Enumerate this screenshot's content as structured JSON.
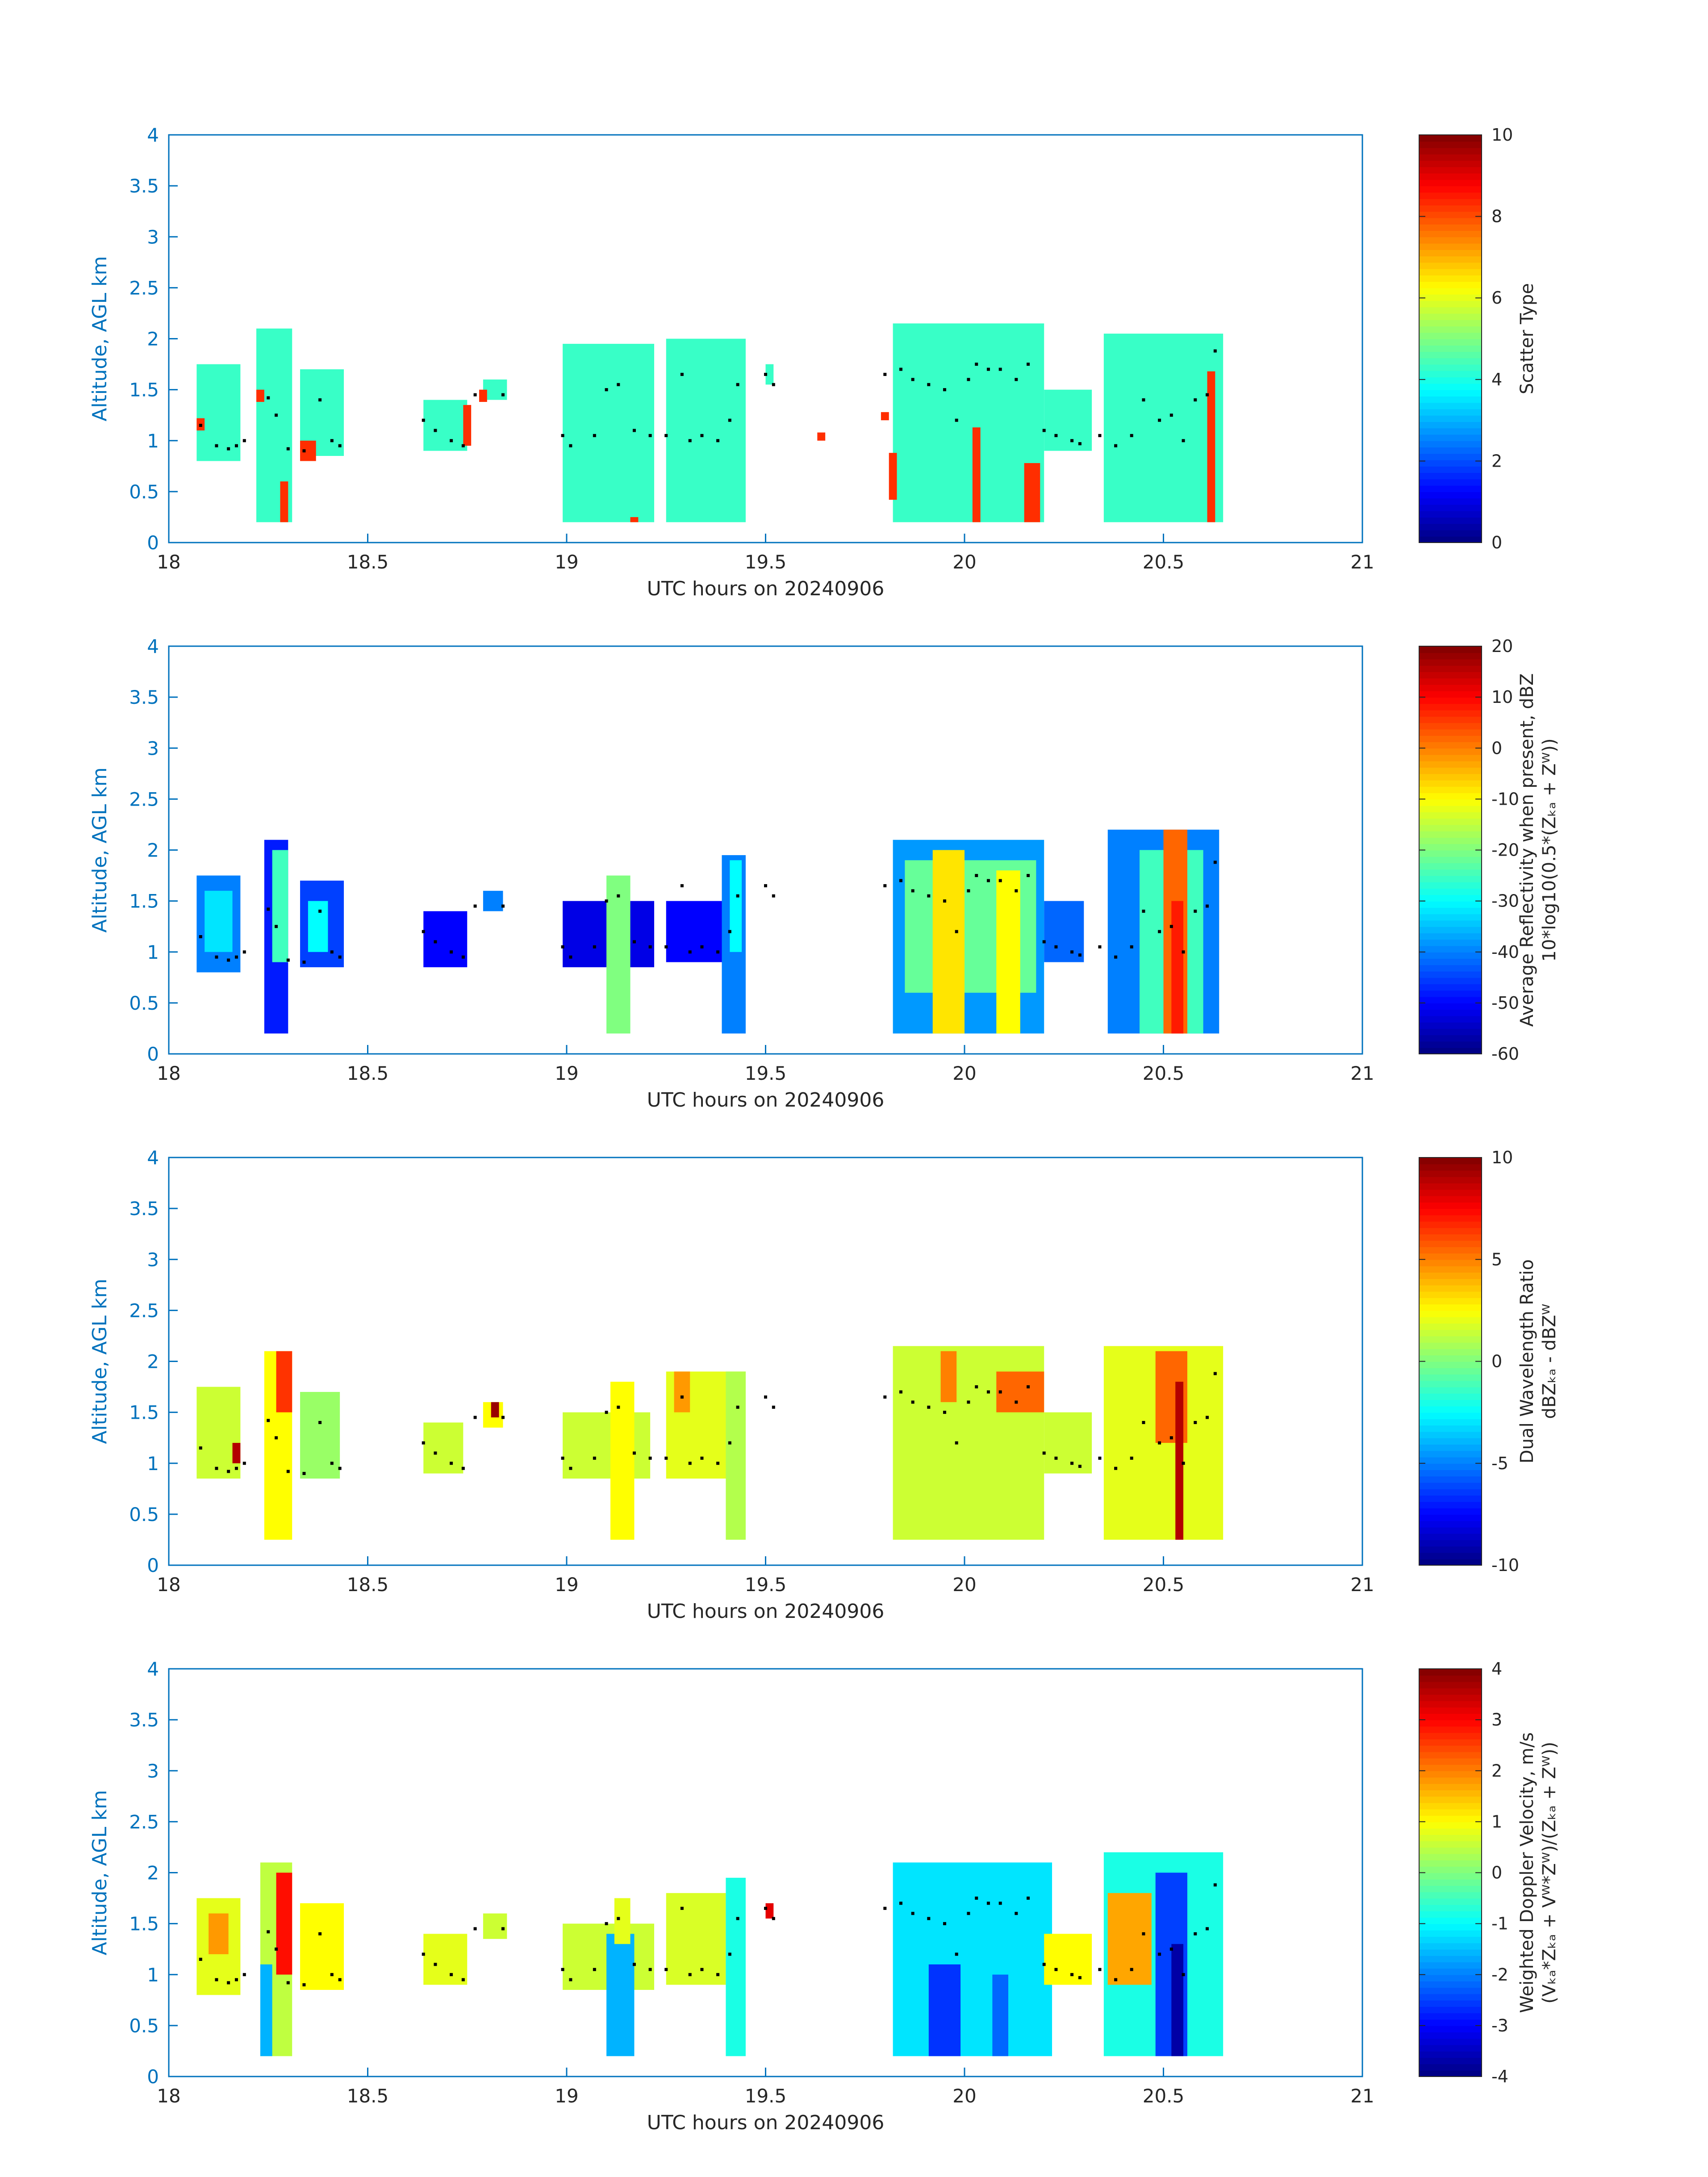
{
  "colors": {
    "axis": "#0072BD",
    "text": "#262626",
    "marker": "#000000",
    "background": "#ffffff"
  },
  "chart_data": [
    {
      "type": "heatmap",
      "xlabel": "UTC hours on 20240906",
      "ylabel": "Altitude, AGL km",
      "xlim": [
        18,
        21
      ],
      "ylim": [
        0,
        4
      ],
      "xticks": [
        "18",
        "18.5",
        "19",
        "19.5",
        "20",
        "20.5",
        "21"
      ],
      "yticks": [
        "0",
        "0.5",
        "1",
        "1.5",
        "2",
        "2.5",
        "3",
        "3.5",
        "4"
      ],
      "colorbar": {
        "label_lines": [
          "Scatter Type"
        ],
        "clim": [
          0,
          10
        ],
        "ticks": [
          "0",
          "2",
          "4",
          "6",
          "8",
          "10"
        ],
        "colormap": "jet"
      },
      "segments": [
        {
          "t0": 18.07,
          "t1": 18.18,
          "bottom": 0.8,
          "top": 1.75,
          "v": 4.3
        },
        {
          "t0": 18.22,
          "t1": 18.31,
          "bottom": 0.2,
          "top": 2.1,
          "v": 4.3
        },
        {
          "t0": 18.33,
          "t1": 18.44,
          "bottom": 0.85,
          "top": 1.7,
          "v": 4.3
        },
        {
          "t0": 18.64,
          "t1": 18.75,
          "bottom": 0.9,
          "top": 1.4,
          "v": 4.3
        },
        {
          "t0": 18.79,
          "t1": 18.85,
          "bottom": 1.4,
          "top": 1.6,
          "v": 4.3
        },
        {
          "t0": 18.99,
          "t1": 19.22,
          "bottom": 0.2,
          "top": 1.95,
          "v": 4.3
        },
        {
          "t0": 19.25,
          "t1": 19.45,
          "bottom": 0.2,
          "top": 2.0,
          "v": 4.3
        },
        {
          "t0": 19.5,
          "t1": 19.52,
          "bottom": 1.55,
          "top": 1.75,
          "v": 4.3
        },
        {
          "t0": 19.82,
          "t1": 20.2,
          "bottom": 0.2,
          "top": 2.15,
          "v": 4.3
        },
        {
          "t0": 20.2,
          "t1": 20.32,
          "bottom": 0.9,
          "top": 1.5,
          "v": 4.3
        },
        {
          "t0": 20.35,
          "t1": 20.65,
          "bottom": 0.2,
          "top": 2.05,
          "v": 4.3
        },
        {
          "t0": 18.07,
          "t1": 18.09,
          "bottom": 1.1,
          "top": 1.22,
          "v": 8.3
        },
        {
          "t0": 18.22,
          "t1": 18.24,
          "bottom": 1.38,
          "top": 1.5,
          "v": 8.3
        },
        {
          "t0": 18.28,
          "t1": 18.3,
          "bottom": 0.2,
          "top": 0.6,
          "v": 8.3
        },
        {
          "t0": 18.33,
          "t1": 18.37,
          "bottom": 0.8,
          "top": 1.0,
          "v": 8.3
        },
        {
          "t0": 18.74,
          "t1": 18.76,
          "bottom": 0.95,
          "top": 1.35,
          "v": 8.3
        },
        {
          "t0": 18.78,
          "t1": 18.8,
          "bottom": 1.38,
          "top": 1.5,
          "v": 8.3
        },
        {
          "t0": 19.16,
          "t1": 19.18,
          "bottom": 0.2,
          "top": 0.25,
          "v": 8.3
        },
        {
          "t0": 19.63,
          "t1": 19.65,
          "bottom": 1.0,
          "top": 1.08,
          "v": 8.3
        },
        {
          "t0": 19.79,
          "t1": 19.81,
          "bottom": 1.2,
          "top": 1.28,
          "v": 8.3
        },
        {
          "t0": 19.81,
          "t1": 19.83,
          "bottom": 0.42,
          "top": 0.88,
          "v": 8.3
        },
        {
          "t0": 20.02,
          "t1": 20.04,
          "bottom": 0.2,
          "top": 1.13,
          "v": 8.3
        },
        {
          "t0": 20.15,
          "t1": 20.19,
          "bottom": 0.2,
          "top": 0.78,
          "v": 8.3
        },
        {
          "t0": 20.61,
          "t1": 20.63,
          "bottom": 0.2,
          "top": 1.68,
          "v": 8.3
        }
      ]
    },
    {
      "type": "heatmap",
      "xlabel": "UTC hours on 20240906",
      "ylabel": "Altitude, AGL km",
      "xlim": [
        18,
        21
      ],
      "ylim": [
        0,
        4
      ],
      "xticks": [
        "18",
        "18.5",
        "19",
        "19.5",
        "20",
        "20.5",
        "21"
      ],
      "yticks": [
        "0",
        "0.5",
        "1",
        "1.5",
        "2",
        "2.5",
        "3",
        "3.5",
        "4"
      ],
      "colorbar": {
        "label_lines": [
          "Average Reflectivity when present, dBZ",
          "10*log10(0.5*(Zₖₐ + Zᵂ))"
        ],
        "clim": [
          -60,
          20
        ],
        "ticks": [
          "-60",
          "-50",
          "-40",
          "-30",
          "-20",
          "-10",
          "0",
          "10",
          "20"
        ],
        "colormap": "jet"
      },
      "segments": [
        {
          "t0": 18.07,
          "t1": 18.18,
          "bottom": 0.8,
          "top": 1.75,
          "v": -40
        },
        {
          "t0": 18.09,
          "t1": 18.16,
          "bottom": 1.0,
          "top": 1.6,
          "v": -32
        },
        {
          "t0": 18.24,
          "t1": 18.3,
          "bottom": 0.2,
          "top": 2.1,
          "v": -48
        },
        {
          "t0": 18.26,
          "t1": 18.3,
          "bottom": 0.9,
          "top": 2.0,
          "v": -25
        },
        {
          "t0": 18.33,
          "t1": 18.44,
          "bottom": 0.85,
          "top": 1.7,
          "v": -45
        },
        {
          "t0": 18.35,
          "t1": 18.4,
          "bottom": 1.0,
          "top": 1.5,
          "v": -30
        },
        {
          "t0": 18.64,
          "t1": 18.75,
          "bottom": 0.85,
          "top": 1.4,
          "v": -50
        },
        {
          "t0": 18.79,
          "t1": 18.84,
          "bottom": 1.4,
          "top": 1.6,
          "v": -40
        },
        {
          "t0": 18.99,
          "t1": 19.22,
          "bottom": 0.85,
          "top": 1.5,
          "v": -52
        },
        {
          "t0": 19.1,
          "t1": 19.16,
          "bottom": 0.2,
          "top": 1.75,
          "v": -20
        },
        {
          "t0": 19.25,
          "t1": 19.4,
          "bottom": 0.9,
          "top": 1.5,
          "v": -50
        },
        {
          "t0": 19.39,
          "t1": 19.45,
          "bottom": 0.2,
          "top": 1.95,
          "v": -40
        },
        {
          "t0": 19.41,
          "t1": 19.44,
          "bottom": 1.0,
          "top": 1.9,
          "v": -30
        },
        {
          "t0": 19.82,
          "t1": 20.2,
          "bottom": 0.2,
          "top": 2.1,
          "v": -38
        },
        {
          "t0": 19.85,
          "t1": 20.18,
          "bottom": 0.6,
          "top": 1.9,
          "v": -22
        },
        {
          "t0": 19.92,
          "t1": 20.0,
          "bottom": 0.2,
          "top": 2.0,
          "v": -8
        },
        {
          "t0": 20.08,
          "t1": 20.14,
          "bottom": 0.2,
          "top": 1.8,
          "v": -10
        },
        {
          "t0": 20.2,
          "t1": 20.3,
          "bottom": 0.9,
          "top": 1.5,
          "v": -42
        },
        {
          "t0": 20.36,
          "t1": 20.64,
          "bottom": 0.2,
          "top": 2.2,
          "v": -40
        },
        {
          "t0": 20.44,
          "t1": 20.6,
          "bottom": 0.2,
          "top": 2.0,
          "v": -25
        },
        {
          "t0": 20.5,
          "t1": 20.56,
          "bottom": 0.2,
          "top": 2.2,
          "v": 2
        },
        {
          "t0": 20.52,
          "t1": 20.55,
          "bottom": 0.2,
          "top": 1.5,
          "v": 8
        }
      ]
    },
    {
      "type": "heatmap",
      "xlabel": "UTC hours on 20240906",
      "ylabel": "Altitude, AGL km",
      "xlim": [
        18,
        21
      ],
      "ylim": [
        0,
        4
      ],
      "xticks": [
        "18",
        "18.5",
        "19",
        "19.5",
        "20",
        "20.5",
        "21"
      ],
      "yticks": [
        "0",
        "0.5",
        "1",
        "1.5",
        "2",
        "2.5",
        "3",
        "3.5",
        "4"
      ],
      "colorbar": {
        "label_lines": [
          "Dual Wavelength Ratio",
          "dBZₖₐ - dBZᵂ"
        ],
        "clim": [
          -10,
          10
        ],
        "ticks": [
          "-10",
          "-5",
          "0",
          "5",
          "10"
        ],
        "colormap": "jet"
      },
      "segments": [
        {
          "t0": 18.07,
          "t1": 18.18,
          "bottom": 0.85,
          "top": 1.75,
          "v": 1.5
        },
        {
          "t0": 18.16,
          "t1": 18.18,
          "bottom": 1.0,
          "top": 1.2,
          "v": 9
        },
        {
          "t0": 18.24,
          "t1": 18.31,
          "bottom": 0.25,
          "top": 2.1,
          "v": 2.5
        },
        {
          "t0": 18.27,
          "t1": 18.31,
          "bottom": 1.5,
          "top": 2.1,
          "v": 6.5
        },
        {
          "t0": 18.33,
          "t1": 18.43,
          "bottom": 0.85,
          "top": 1.7,
          "v": 0.5
        },
        {
          "t0": 18.64,
          "t1": 18.74,
          "bottom": 0.9,
          "top": 1.4,
          "v": 1.5
        },
        {
          "t0": 18.79,
          "t1": 18.84,
          "bottom": 1.35,
          "top": 1.6,
          "v": 2.5
        },
        {
          "t0": 18.81,
          "t1": 18.83,
          "bottom": 1.45,
          "top": 1.6,
          "v": 9.5
        },
        {
          "t0": 18.99,
          "t1": 19.21,
          "bottom": 0.85,
          "top": 1.5,
          "v": 1.5
        },
        {
          "t0": 19.11,
          "t1": 19.17,
          "bottom": 0.25,
          "top": 1.8,
          "v": 2.5
        },
        {
          "t0": 19.25,
          "t1": 19.45,
          "bottom": 0.85,
          "top": 1.9,
          "v": 2
        },
        {
          "t0": 19.27,
          "t1": 19.31,
          "bottom": 1.5,
          "top": 1.9,
          "v": 4.5
        },
        {
          "t0": 19.4,
          "t1": 19.45,
          "bottom": 0.25,
          "top": 1.9,
          "v": 1
        },
        {
          "t0": 19.82,
          "t1": 20.2,
          "bottom": 0.25,
          "top": 2.15,
          "v": 1.5
        },
        {
          "t0": 19.94,
          "t1": 19.98,
          "bottom": 1.6,
          "top": 2.1,
          "v": 5
        },
        {
          "t0": 20.08,
          "t1": 20.2,
          "bottom": 1.5,
          "top": 1.9,
          "v": 5.5
        },
        {
          "t0": 20.2,
          "t1": 20.32,
          "bottom": 0.9,
          "top": 1.5,
          "v": 1.5
        },
        {
          "t0": 20.35,
          "t1": 20.65,
          "bottom": 0.25,
          "top": 2.15,
          "v": 2
        },
        {
          "t0": 20.48,
          "t1": 20.56,
          "bottom": 1.2,
          "top": 2.1,
          "v": 5.5
        },
        {
          "t0": 20.53,
          "t1": 20.55,
          "bottom": 0.25,
          "top": 1.8,
          "v": 9
        }
      ]
    },
    {
      "type": "heatmap",
      "xlabel": "UTC hours on 20240906",
      "ylabel": "Altitude, AGL km",
      "xlim": [
        18,
        21
      ],
      "ylim": [
        0,
        4
      ],
      "xticks": [
        "18",
        "18.5",
        "19",
        "19.5",
        "20",
        "20.5",
        "21"
      ],
      "yticks": [
        "0",
        "0.5",
        "1",
        "1.5",
        "2",
        "2.5",
        "3",
        "3.5",
        "4"
      ],
      "colorbar": {
        "label_lines": [
          "Weighted Doppler Velocity, m/s",
          "(Vₖₐ*Zₖₐ + Vᵂ*Zᵂ)/(Zₖₐ + Zᵂ))"
        ],
        "clim": [
          -4,
          4
        ],
        "ticks": [
          "-4",
          "-3",
          "-2",
          "-1",
          "0",
          "1",
          "2",
          "3",
          "4"
        ],
        "colormap": "jet"
      },
      "segments": [
        {
          "t0": 18.07,
          "t1": 18.18,
          "bottom": 0.8,
          "top": 1.75,
          "v": 0.8
        },
        {
          "t0": 18.1,
          "t1": 18.15,
          "bottom": 1.2,
          "top": 1.6,
          "v": 1.8
        },
        {
          "t0": 18.23,
          "t1": 18.31,
          "bottom": 0.2,
          "top": 2.1,
          "v": 0.5
        },
        {
          "t0": 18.23,
          "t1": 18.26,
          "bottom": 0.2,
          "top": 1.1,
          "v": -1.6
        },
        {
          "t0": 18.27,
          "t1": 18.31,
          "bottom": 1.0,
          "top": 2.0,
          "v": 2.9
        },
        {
          "t0": 18.33,
          "t1": 18.44,
          "bottom": 0.85,
          "top": 1.7,
          "v": 1.0
        },
        {
          "t0": 18.64,
          "t1": 18.75,
          "bottom": 0.9,
          "top": 1.4,
          "v": 0.8
        },
        {
          "t0": 18.79,
          "t1": 18.85,
          "bottom": 1.35,
          "top": 1.6,
          "v": 0.6
        },
        {
          "t0": 18.99,
          "t1": 19.22,
          "bottom": 0.85,
          "top": 1.5,
          "v": 0.6
        },
        {
          "t0": 19.1,
          "t1": 19.17,
          "bottom": 0.2,
          "top": 1.4,
          "v": -1.6
        },
        {
          "t0": 19.12,
          "t1": 19.16,
          "bottom": 1.3,
          "top": 1.75,
          "v": 0.8
        },
        {
          "t0": 19.25,
          "t1": 19.4,
          "bottom": 0.9,
          "top": 1.8,
          "v": 0.7
        },
        {
          "t0": 19.4,
          "t1": 19.45,
          "bottom": 0.2,
          "top": 1.95,
          "v": -0.8
        },
        {
          "t0": 19.5,
          "t1": 19.52,
          "bottom": 1.55,
          "top": 1.7,
          "v": 3.2
        },
        {
          "t0": 19.82,
          "t1": 20.22,
          "bottom": 0.2,
          "top": 2.1,
          "v": -1.2
        },
        {
          "t0": 19.91,
          "t1": 19.99,
          "bottom": 0.2,
          "top": 1.1,
          "v": -2.6
        },
        {
          "t0": 20.07,
          "t1": 20.11,
          "bottom": 0.2,
          "top": 1.0,
          "v": -2.2
        },
        {
          "t0": 20.2,
          "t1": 20.32,
          "bottom": 0.9,
          "top": 1.4,
          "v": 1.0
        },
        {
          "t0": 20.35,
          "t1": 20.65,
          "bottom": 0.2,
          "top": 2.2,
          "v": -0.8
        },
        {
          "t0": 20.36,
          "t1": 20.47,
          "bottom": 0.9,
          "top": 1.8,
          "v": 1.7
        },
        {
          "t0": 20.48,
          "t1": 20.56,
          "bottom": 0.2,
          "top": 2.0,
          "v": -2.5
        },
        {
          "t0": 20.52,
          "t1": 20.55,
          "bottom": 0.2,
          "top": 1.3,
          "v": -3.7
        }
      ]
    }
  ],
  "markers": [
    [
      18.08,
      1.15
    ],
    [
      18.12,
      0.95
    ],
    [
      18.15,
      0.92
    ],
    [
      18.17,
      0.95
    ],
    [
      18.19,
      1.0
    ],
    [
      18.25,
      1.42
    ],
    [
      18.27,
      1.25
    ],
    [
      18.3,
      0.92
    ],
    [
      18.34,
      0.9
    ],
    [
      18.38,
      1.4
    ],
    [
      18.41,
      1.0
    ],
    [
      18.43,
      0.95
    ],
    [
      18.64,
      1.2
    ],
    [
      18.67,
      1.1
    ],
    [
      18.71,
      1.0
    ],
    [
      18.74,
      0.95
    ],
    [
      18.77,
      1.45
    ],
    [
      18.84,
      1.45
    ],
    [
      18.99,
      1.05
    ],
    [
      19.01,
      0.95
    ],
    [
      19.07,
      1.05
    ],
    [
      19.1,
      1.5
    ],
    [
      19.13,
      1.55
    ],
    [
      19.17,
      1.1
    ],
    [
      19.21,
      1.05
    ],
    [
      19.25,
      1.05
    ],
    [
      19.29,
      1.65
    ],
    [
      19.31,
      1.0
    ],
    [
      19.34,
      1.05
    ],
    [
      19.38,
      1.0
    ],
    [
      19.41,
      1.2
    ],
    [
      19.43,
      1.55
    ],
    [
      19.5,
      1.65
    ],
    [
      19.52,
      1.55
    ],
    [
      19.8,
      1.65
    ],
    [
      19.84,
      1.7
    ],
    [
      19.87,
      1.6
    ],
    [
      19.91,
      1.55
    ],
    [
      19.95,
      1.5
    ],
    [
      19.98,
      1.2
    ],
    [
      20.01,
      1.6
    ],
    [
      20.03,
      1.75
    ],
    [
      20.06,
      1.7
    ],
    [
      20.09,
      1.7
    ],
    [
      20.13,
      1.6
    ],
    [
      20.16,
      1.75
    ],
    [
      20.2,
      1.1
    ],
    [
      20.23,
      1.05
    ],
    [
      20.27,
      1.0
    ],
    [
      20.29,
      0.97
    ],
    [
      20.34,
      1.05
    ],
    [
      20.38,
      0.95
    ],
    [
      20.42,
      1.05
    ],
    [
      20.45,
      1.4
    ],
    [
      20.49,
      1.2
    ],
    [
      20.52,
      1.25
    ],
    [
      20.55,
      1.0
    ],
    [
      20.58,
      1.4
    ],
    [
      20.61,
      1.45
    ],
    [
      20.63,
      1.88
    ]
  ]
}
